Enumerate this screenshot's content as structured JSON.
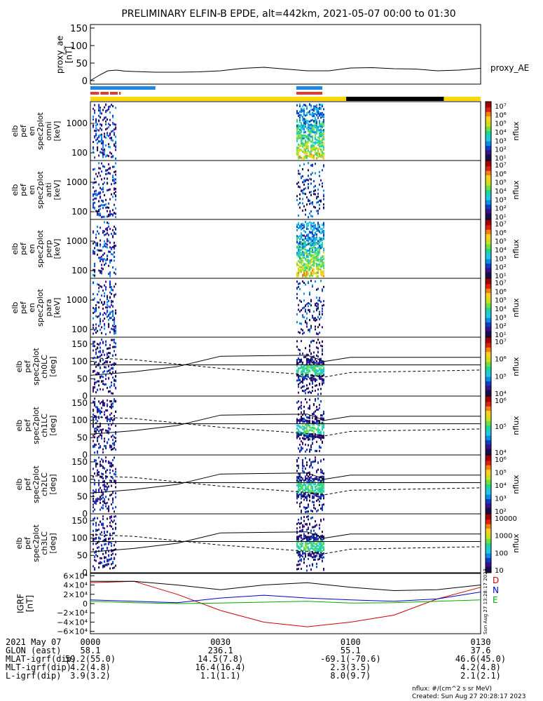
{
  "title": "PRELIMINARY ELFIN-B EPDE, alt=442km, 2021-05-07 00:00 to 01:30",
  "colors": {
    "fill_good": "#ffd700",
    "fill_bad": "#000000",
    "ind_blue": "#1e88e5",
    "ind_red": "#e53935",
    "grf_d": "#cc0000",
    "grf_n": "#0000cc",
    "grf_e": "#00aa00",
    "grf_total": "#000000"
  },
  "chart_data": [
    {
      "type": "line",
      "name": "proxy_ae_panel",
      "ylabel_lines": [
        "proxy_ae",
        "[nT]"
      ],
      "legend": "proxy_AE",
      "ylim": [
        -10,
        160
      ],
      "yticks": [
        "150",
        "100",
        "50",
        "0"
      ],
      "ytick_values": [
        150,
        100,
        50,
        0
      ],
      "t": [
        0,
        2,
        4,
        6,
        8,
        10,
        15,
        20,
        25,
        30,
        35,
        40,
        45,
        50,
        55,
        60,
        65,
        70,
        75,
        80,
        85,
        90
      ],
      "values": [
        0,
        15,
        28,
        30,
        27,
        26,
        24,
        24,
        25,
        28,
        35,
        38,
        33,
        28,
        28,
        36,
        37,
        34,
        33,
        28,
        30,
        35
      ]
    },
    {
      "type": "heatmap",
      "name": "spectrogram_panels",
      "panels": [
        {
          "ylabel_lines": [
            "elb",
            "pef",
            "en",
            "spec2plot",
            "omni",
            "[keV]"
          ],
          "yticks": [
            "1000",
            "100"
          ],
          "cbar_ticks": [
            "10^7",
            "10^6",
            "10^5",
            "10^4",
            "10^3",
            "10^2",
            "10^1"
          ],
          "cbar_label": "nflux"
        },
        {
          "ylabel_lines": [
            "elb",
            "pef",
            "en",
            "spec2plot",
            "anti",
            "[keV]"
          ],
          "yticks": [
            "1000",
            "100"
          ],
          "cbar_ticks": [
            "10^7",
            "10^6",
            "10^5",
            "10^4",
            "10^3",
            "10^2",
            "10^1"
          ],
          "cbar_label": "nflux"
        },
        {
          "ylabel_lines": [
            "elb",
            "pef",
            "en",
            "spec2plot",
            "perp",
            "[keV]"
          ],
          "yticks": [
            "1000",
            "100"
          ],
          "cbar_ticks": [
            "10^7",
            "10^6",
            "10^5",
            "10^4",
            "10^3",
            "10^2",
            "10^1"
          ],
          "cbar_label": "nflux"
        },
        {
          "ylabel_lines": [
            "elb",
            "pef",
            "en",
            "spec2plot",
            "para",
            "[keV]"
          ],
          "yticks": [
            "1000",
            "100"
          ],
          "cbar_ticks": [
            "10^7",
            "10^6",
            "10^5",
            "10^4",
            "10^3",
            "10^2",
            "10^1"
          ],
          "cbar_label": "nflux"
        },
        {
          "ylabel_lines": [
            "elb",
            "pef",
            "spec2plot",
            "ch0LC",
            "[deg]"
          ],
          "yticks": [
            "150",
            "100",
            "50",
            "0"
          ],
          "cbar_ticks": [
            "10^7",
            "10^6",
            "10^5",
            "10^4"
          ],
          "cbar_label": "nflux"
        },
        {
          "ylabel_lines": [
            "elb",
            "pef",
            "spec2plot",
            "ch1LC",
            "[deg]"
          ],
          "yticks": [
            "150",
            "100",
            "50",
            "0"
          ],
          "cbar_ticks": [
            "10^6",
            "10^5",
            "10^4"
          ],
          "cbar_label": "nflux"
        },
        {
          "ylabel_lines": [
            "elb",
            "pef",
            "spec2plot",
            "ch2LC",
            "[deg]"
          ],
          "yticks": [
            "150",
            "100",
            "50",
            "0"
          ],
          "cbar_ticks": [
            "10^6",
            "10^5",
            "10^4",
            "10^3",
            "10^2"
          ],
          "cbar_label": "nflux"
        },
        {
          "ylabel_lines": [
            "elb",
            "pef",
            "spec2plot",
            "ch3LC",
            "[deg]"
          ],
          "yticks": [
            "150",
            "100",
            "50",
            "0"
          ],
          "cbar_ticks": [
            "10000",
            "1000",
            "100",
            "10"
          ],
          "cbar_label": "nflux"
        }
      ]
    },
    {
      "type": "line",
      "name": "igrf_panel",
      "ylabel_lines": [
        "IGRF",
        "[nT]"
      ],
      "yticks": [
        "6×10^4",
        "4×10^4",
        "2×10^4",
        "0",
        "−2×10^4",
        "−4×10^4",
        "−6×10^4"
      ],
      "ytick_values": [
        60000,
        40000,
        20000,
        0,
        -20000,
        -40000,
        -60000
      ],
      "ylim": [
        -65000,
        65000
      ],
      "t": [
        0,
        10,
        20,
        30,
        40,
        50,
        60,
        70,
        80,
        90
      ],
      "series": [
        {
          "name": "D",
          "values": [
            45000,
            48000,
            20000,
            -15000,
            -40000,
            -50000,
            -40000,
            -25000,
            10000,
            35000
          ]
        },
        {
          "name": "N",
          "values": [
            8000,
            5000,
            2000,
            12000,
            18000,
            12000,
            8000,
            5000,
            10000,
            25000
          ]
        },
        {
          "name": "E",
          "values": [
            5000,
            2000,
            0,
            1000,
            3000,
            5000,
            1000,
            2000,
            5000,
            8000
          ]
        },
        {
          "name": "Total",
          "values": [
            48000,
            48000,
            40000,
            30000,
            40000,
            45000,
            35000,
            28000,
            30000,
            40000
          ]
        }
      ]
    }
  ],
  "orbit_table": {
    "rows": [
      {
        "label": "2021 May 07",
        "values": [
          "0000",
          "0030",
          "0100",
          "0130"
        ]
      },
      {
        "label": "GLON (east)",
        "values": [
          "58.1",
          "236.1",
          "55.1",
          "37.6"
        ]
      },
      {
        "label": "MLAT-igrf(dip)",
        "values": [
          "59.2(55.0)",
          "14.5(7.8)",
          "-69.1(-70.6)",
          "46.6(45.0)"
        ]
      },
      {
        "label": "MLT-igrf(dip)",
        "values": [
          "4.2(4.8)",
          "16.4(16.4)",
          "2.3(3.5)",
          "4.2(4.8)"
        ]
      },
      {
        "label": "L-igrf(dip)",
        "values": [
          "3.9(3.2)",
          "1.1(1.1)",
          "8.0(9.7)",
          "2.1(2.1)"
        ]
      }
    ]
  },
  "footer": {
    "units": "nflux: #/(cm^2 s sr MeV)",
    "created": "Created: Sun Aug 27 20:28:17 2023"
  },
  "side_stamp": "Sun Aug 27 13:28:17 2023"
}
